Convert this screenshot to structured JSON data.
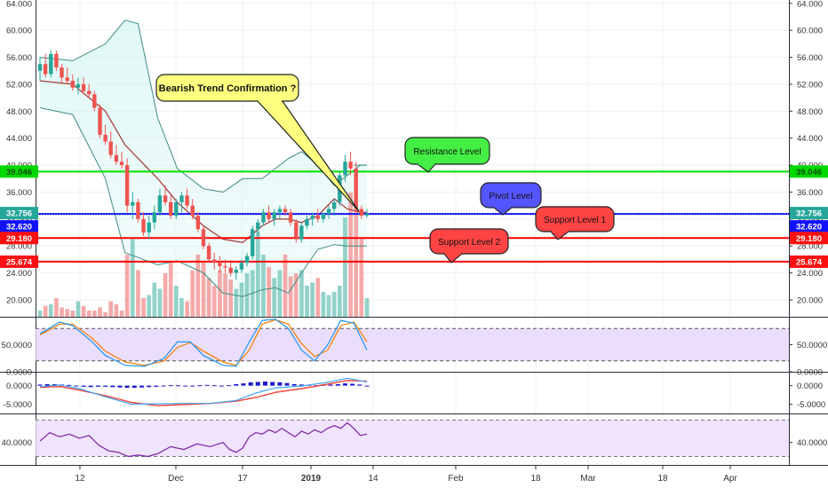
{
  "chart_data": {
    "type": "candlestick",
    "main": {
      "ylim": [
        17.5,
        64.5
      ],
      "y_ticks": [
        "20.000",
        "24.000",
        "28.000",
        "32.000",
        "36.000",
        "40.000",
        "44.000",
        "48.000",
        "52.000",
        "56.000",
        "60.000",
        "64.000"
      ],
      "x_ticks": [
        "12",
        "Dec",
        "17",
        "2019",
        "14",
        "Feb",
        "18",
        "Mar",
        "18",
        "Apr"
      ],
      "candles": [
        [
          54,
          56,
          52.5,
          55
        ],
        [
          55,
          56.5,
          53,
          53.5
        ],
        [
          53.5,
          57,
          53,
          56.5
        ],
        [
          56.5,
          57,
          54,
          54.5
        ],
        [
          54.5,
          55,
          52,
          53
        ],
        [
          53,
          54.5,
          52,
          52.5
        ],
        [
          52.5,
          53.5,
          51,
          51.5
        ],
        [
          51.5,
          53,
          50.5,
          52
        ],
        [
          52,
          53,
          50.5,
          51
        ],
        [
          51,
          52,
          50,
          50.5
        ],
        [
          50.5,
          51,
          48,
          48.5
        ],
        [
          48.5,
          49,
          44,
          44.5
        ],
        [
          44.5,
          46,
          43,
          43.5
        ],
        [
          43.5,
          45,
          41,
          41.5
        ],
        [
          41.5,
          43,
          40,
          40.5
        ],
        [
          40.5,
          42,
          39.5,
          40
        ],
        [
          40,
          41,
          33,
          34
        ],
        [
          34,
          36,
          32,
          34.5
        ],
        [
          34.5,
          35,
          31.5,
          32
        ],
        [
          32,
          33,
          29.5,
          30
        ],
        [
          30,
          32.5,
          29,
          31.5
        ],
        [
          31.5,
          34,
          30.5,
          33
        ],
        [
          33,
          36.5,
          32.5,
          35.5
        ],
        [
          35.5,
          37,
          34,
          34.5
        ],
        [
          34.5,
          35.5,
          32,
          32.5
        ],
        [
          32.5,
          35,
          32,
          34.5
        ],
        [
          34.5,
          36,
          33,
          35.5
        ],
        [
          35.5,
          36.5,
          33.5,
          34
        ],
        [
          34,
          35,
          32,
          32.5
        ],
        [
          32.5,
          33,
          30,
          30.5
        ],
        [
          30.5,
          31,
          27.5,
          28
        ],
        [
          28,
          28.5,
          25.5,
          26
        ],
        [
          26,
          27,
          24.5,
          25.5
        ],
        [
          25.5,
          26.5,
          24,
          25
        ],
        [
          25,
          26,
          24,
          24.8
        ],
        [
          24.8,
          25.5,
          23.5,
          24
        ],
        [
          24,
          25,
          23,
          24.5
        ],
        [
          24.5,
          26,
          24,
          25.5
        ],
        [
          25.5,
          27,
          25,
          26.5
        ],
        [
          26.5,
          31,
          26,
          30.5
        ],
        [
          30.5,
          32,
          29.5,
          31.5
        ],
        [
          31.5,
          33.5,
          31,
          33
        ],
        [
          33,
          34,
          31.5,
          32
        ],
        [
          32,
          33.5,
          31,
          33
        ],
        [
          33,
          34,
          32,
          33.5
        ],
        [
          33.5,
          34,
          32.5,
          33
        ],
        [
          33,
          33.5,
          31,
          31.5
        ],
        [
          31.5,
          32,
          28.5,
          29
        ],
        [
          29,
          31.5,
          28.5,
          31
        ],
        [
          31,
          32.5,
          30.5,
          32
        ],
        [
          32,
          33,
          31,
          32.5
        ],
        [
          32.5,
          33.5,
          31.5,
          32
        ],
        [
          32,
          33,
          31.5,
          32.8
        ],
        [
          32.8,
          34,
          32,
          33.5
        ],
        [
          33.5,
          35,
          32.5,
          34.5
        ],
        [
          34.5,
          39,
          34,
          38.5
        ],
        [
          38.5,
          41.5,
          37.5,
          40.5
        ],
        [
          40.5,
          42,
          38.5,
          39.5
        ],
        [
          39.5,
          40.5,
          33,
          33.5
        ],
        [
          33.5,
          34,
          32,
          32.5
        ],
        [
          32.5,
          33.5,
          32.2,
          32.8
        ]
      ],
      "bollinger_upper": [
        [
          0,
          56
        ],
        [
          10,
          55.5
        ],
        [
          20,
          58
        ],
        [
          26,
          61.5
        ],
        [
          30,
          61
        ],
        [
          36,
          47
        ],
        [
          42,
          39.5
        ],
        [
          50,
          36.5
        ],
        [
          56,
          36
        ],
        [
          62,
          38
        ],
        [
          68,
          38
        ],
        [
          72,
          39.5
        ],
        [
          76,
          41
        ],
        [
          80,
          42
        ],
        [
          85,
          40
        ],
        [
          90,
          37
        ],
        [
          94,
          38.5
        ],
        [
          98,
          40
        ],
        [
          100,
          40
        ]
      ],
      "bollinger_middle": [
        [
          0,
          52.5
        ],
        [
          10,
          52
        ],
        [
          20,
          48
        ],
        [
          26,
          43
        ],
        [
          36,
          38
        ],
        [
          42,
          34.5
        ],
        [
          50,
          31
        ],
        [
          56,
          29
        ],
        [
          62,
          28.5
        ],
        [
          68,
          31
        ],
        [
          72,
          32
        ],
        [
          76,
          32
        ],
        [
          80,
          31.5
        ],
        [
          85,
          32.5
        ],
        [
          90,
          35
        ],
        [
          94,
          33.5
        ],
        [
          98,
          33
        ],
        [
          100,
          33
        ]
      ],
      "bollinger_lower": [
        [
          0,
          48.5
        ],
        [
          10,
          47.5
        ],
        [
          20,
          38
        ],
        [
          26,
          27
        ],
        [
          36,
          25.2
        ],
        [
          42,
          25.8
        ],
        [
          50,
          24
        ],
        [
          56,
          21
        ],
        [
          62,
          20.5
        ],
        [
          68,
          21.5
        ],
        [
          72,
          21.8
        ],
        [
          76,
          21
        ],
        [
          80,
          24
        ],
        [
          85,
          27.5
        ],
        [
          90,
          28.2
        ],
        [
          94,
          28
        ],
        [
          100,
          28
        ]
      ],
      "volume": [
        4,
        7,
        8,
        12,
        6,
        5,
        4,
        10,
        7,
        4,
        4,
        6,
        3,
        10,
        8,
        4,
        40,
        50,
        30,
        12,
        14,
        22,
        18,
        28,
        35,
        20,
        12,
        10,
        30,
        40,
        35,
        25,
        20,
        30,
        28,
        24,
        18,
        22,
        28,
        30,
        55,
        40,
        32,
        25,
        30,
        40,
        26,
        28,
        30,
        20,
        22,
        25,
        16,
        14,
        16,
        20,
        64,
        80,
        70,
        50,
        12
      ],
      "horizontal_levels": [
        {
          "value": 39.046,
          "label": "39.046",
          "color": "#00e000"
        },
        {
          "value": 32.756,
          "label": "32.756",
          "color": "#0000ff"
        },
        {
          "value": 29.18,
          "label": "29.180",
          "color": "#ff0000"
        },
        {
          "value": 25.674,
          "label": "25.674",
          "color": "#ff0000"
        }
      ],
      "price_tags": [
        {
          "value": 39.046,
          "label": "39.046",
          "color": "#00d900",
          "text_color": "#0b4d0b"
        },
        {
          "value": 32.756,
          "label": "32.756",
          "color": "#26a69a",
          "text_color": "#ffffff"
        },
        {
          "value": 32.62,
          "label": "32.620",
          "color": "#1111ff",
          "text_color": "#ffffff"
        },
        {
          "value": 29.18,
          "label": "29.180",
          "color": "#ff1010",
          "text_color": "#ffffff"
        },
        {
          "value": 25.674,
          "label": "25.674",
          "color": "#ff1010",
          "text_color": "#ffffff"
        }
      ],
      "callouts": [
        {
          "text": "Bearish Trend Confirmation ?",
          "color": "#ffff80"
        },
        {
          "text": "Resistance Level",
          "color": "#44ee44"
        },
        {
          "text": "Pivot Level",
          "color": "#5555ff"
        },
        {
          "text": "Support Level 1",
          "color": "#ff4444"
        },
        {
          "text": "Support Level 2",
          "color": "#ff4444"
        }
      ]
    },
    "stochastic": {
      "ylim": [
        0,
        100
      ],
      "band": [
        20,
        80
      ],
      "y_ticks": [
        "50.0000",
        "0.0000"
      ],
      "k": [
        [
          0,
          70
        ],
        [
          6,
          92
        ],
        [
          10,
          85
        ],
        [
          16,
          55
        ],
        [
          20,
          30
        ],
        [
          26,
          12
        ],
        [
          32,
          10
        ],
        [
          38,
          25
        ],
        [
          42,
          55
        ],
        [
          46,
          55
        ],
        [
          50,
          30
        ],
        [
          56,
          12
        ],
        [
          60,
          10
        ],
        [
          64,
          55
        ],
        [
          68,
          95
        ],
        [
          72,
          97
        ],
        [
          76,
          80
        ],
        [
          80,
          40
        ],
        [
          84,
          20
        ],
        [
          88,
          50
        ],
        [
          92,
          95
        ],
        [
          96,
          90
        ],
        [
          100,
          40
        ]
      ],
      "d": [
        [
          0,
          68
        ],
        [
          6,
          88
        ],
        [
          10,
          88
        ],
        [
          16,
          62
        ],
        [
          20,
          38
        ],
        [
          26,
          18
        ],
        [
          32,
          12
        ],
        [
          38,
          20
        ],
        [
          42,
          45
        ],
        [
          46,
          54
        ],
        [
          50,
          38
        ],
        [
          56,
          18
        ],
        [
          60,
          12
        ],
        [
          64,
          40
        ],
        [
          68,
          88
        ],
        [
          72,
          96
        ],
        [
          76,
          88
        ],
        [
          80,
          52
        ],
        [
          84,
          28
        ],
        [
          88,
          40
        ],
        [
          92,
          85
        ],
        [
          96,
          92
        ],
        [
          100,
          55
        ]
      ]
    },
    "macd": {
      "ylim": [
        -7.5,
        3.5
      ],
      "y_ticks": [
        "0.0000",
        "-5.0000"
      ],
      "macd_line": [
        [
          0,
          -0.3
        ],
        [
          6,
          0.2
        ],
        [
          12,
          -0.8
        ],
        [
          20,
          -3
        ],
        [
          28,
          -5
        ],
        [
          36,
          -4.9
        ],
        [
          44,
          -4.8
        ],
        [
          52,
          -4.8
        ],
        [
          60,
          -4
        ],
        [
          66,
          -2
        ],
        [
          72,
          -0.6
        ],
        [
          80,
          -0.1
        ],
        [
          88,
          0.9
        ],
        [
          94,
          2
        ],
        [
          100,
          1
        ]
      ],
      "signal_line": [
        [
          0,
          -0.5
        ],
        [
          6,
          -0.2
        ],
        [
          12,
          -1.2
        ],
        [
          20,
          -2.7
        ],
        [
          28,
          -4.5
        ],
        [
          36,
          -5.4
        ],
        [
          44,
          -5.1
        ],
        [
          52,
          -4.8
        ],
        [
          60,
          -4.2
        ],
        [
          66,
          -3.2
        ],
        [
          72,
          -1.8
        ],
        [
          80,
          -0.8
        ],
        [
          88,
          0.4
        ],
        [
          94,
          1.4
        ],
        [
          100,
          1.2
        ]
      ],
      "histogram": [
        0.3,
        0.4,
        0.4,
        0.3,
        0.2,
        -0.2,
        -0.3,
        -0.4,
        -0.3,
        -0.3,
        -0.4,
        -0.5,
        -0.6,
        -0.6,
        -0.5,
        -0.4,
        -0.3,
        -0.2,
        0.1,
        0.1,
        0,
        0,
        0.1,
        0.2,
        0.1,
        0,
        0.1,
        0.4,
        0.6,
        0.9,
        1,
        1.1,
        1,
        0.9,
        0.7,
        0.4,
        0.3,
        0.2,
        0.1,
        0.2,
        0.3,
        0.4,
        0.6,
        0.5,
        0.3,
        -0.2
      ]
    },
    "rsi": {
      "ylim": [
        24,
        60
      ],
      "band": [
        30,
        56
      ],
      "y_ticks": [
        "40.0000"
      ],
      "line": [
        [
          0,
          41
        ],
        [
          3,
          47
        ],
        [
          6,
          44
        ],
        [
          9,
          46
        ],
        [
          12,
          43
        ],
        [
          15,
          45
        ],
        [
          18,
          38
        ],
        [
          21,
          34
        ],
        [
          24,
          33
        ],
        [
          27,
          30
        ],
        [
          30,
          31
        ],
        [
          33,
          30
        ],
        [
          36,
          32
        ],
        [
          40,
          37
        ],
        [
          44,
          35
        ],
        [
          48,
          39
        ],
        [
          52,
          37
        ],
        [
          56,
          40
        ],
        [
          58,
          35
        ],
        [
          60,
          33
        ],
        [
          62,
          36
        ],
        [
          64,
          44
        ],
        [
          66,
          47
        ],
        [
          68,
          46
        ],
        [
          70,
          49
        ],
        [
          72,
          47
        ],
        [
          74,
          50
        ],
        [
          76,
          47
        ],
        [
          78,
          44
        ],
        [
          80,
          48
        ],
        [
          82,
          46
        ],
        [
          84,
          49
        ],
        [
          86,
          47
        ],
        [
          88,
          50
        ],
        [
          90,
          52
        ],
        [
          92,
          50
        ],
        [
          94,
          54
        ],
        [
          96,
          50
        ],
        [
          98,
          45
        ],
        [
          100,
          46
        ]
      ]
    }
  }
}
